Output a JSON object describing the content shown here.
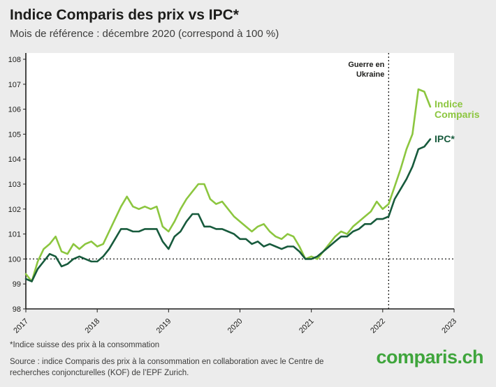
{
  "header": {
    "title": "Indice Comparis des prix vs IPC*",
    "subtitle": "Mois de référence : décembre 2020 (correspond à 100 %)"
  },
  "chart_data": {
    "type": "line",
    "x_start": "2017-01",
    "x_ticks": [
      "2017",
      "2018",
      "2019",
      "2020",
      "2021",
      "2022",
      "2023"
    ],
    "y_ticks": [
      98,
      99,
      100,
      101,
      102,
      103,
      104,
      105,
      106,
      107,
      108
    ],
    "ylim": [
      98,
      108
    ],
    "grid": "off",
    "reference_value": 100,
    "annotation": {
      "line1": "Guerre en",
      "line2": "Ukraine",
      "month_index": 61
    },
    "series": [
      {
        "name": "Indice Comparis",
        "legend_lines": [
          "Indice",
          "Comparis"
        ],
        "color": "#8CC63F",
        "values": [
          99.4,
          99.1,
          99.9,
          100.4,
          100.6,
          100.9,
          100.3,
          100.2,
          100.6,
          100.4,
          100.6,
          100.7,
          100.5,
          100.6,
          101.1,
          101.6,
          102.1,
          102.5,
          102.1,
          102.0,
          102.1,
          102.0,
          102.1,
          101.3,
          101.1,
          101.5,
          102.0,
          102.4,
          102.7,
          103.0,
          103.0,
          102.4,
          102.2,
          102.3,
          102.0,
          101.7,
          101.5,
          101.3,
          101.1,
          101.3,
          101.4,
          101.1,
          100.9,
          100.8,
          101.0,
          100.9,
          100.5,
          100.0,
          100.1,
          100.0,
          100.3,
          100.6,
          100.9,
          101.1,
          101.0,
          101.3,
          101.5,
          101.7,
          101.9,
          102.3,
          102.0,
          102.2,
          102.9,
          103.6,
          104.4,
          105.0,
          106.8,
          106.7,
          106.1
        ]
      },
      {
        "name": "IPC*",
        "legend_lines": [
          "IPC*"
        ],
        "color": "#175A3C",
        "values": [
          99.2,
          99.1,
          99.6,
          99.9,
          100.2,
          100.1,
          99.7,
          99.8,
          100.0,
          100.1,
          100.0,
          99.9,
          99.9,
          100.1,
          100.4,
          100.8,
          101.2,
          101.2,
          101.1,
          101.1,
          101.2,
          101.2,
          101.2,
          100.7,
          100.4,
          100.9,
          101.1,
          101.5,
          101.8,
          101.8,
          101.3,
          101.3,
          101.2,
          101.2,
          101.1,
          101.0,
          100.8,
          100.8,
          100.6,
          100.7,
          100.5,
          100.6,
          100.5,
          100.4,
          100.5,
          100.5,
          100.3,
          100.0,
          100.0,
          100.1,
          100.3,
          100.5,
          100.7,
          100.9,
          100.9,
          101.1,
          101.2,
          101.4,
          101.4,
          101.6,
          101.6,
          101.7,
          102.4,
          102.8,
          103.2,
          103.7,
          104.4,
          104.5,
          104.8
        ]
      }
    ]
  },
  "footer": {
    "footnote": "*Indice suisse des prix à la consommation",
    "source": "Source : indice Comparis des prix à la consommation en collaboration avec le Centre de recherches conjoncturelles (KOF) de l’EPF Zurich.",
    "logo": "comparis.ch"
  },
  "colors": {
    "background": "#ececec",
    "plot_background": "#ffffff",
    "axis": "#1d1d1b",
    "comparis_line": "#8CC63F",
    "ipc_line": "#175A3C",
    "logo_green": "#3FA53C"
  }
}
